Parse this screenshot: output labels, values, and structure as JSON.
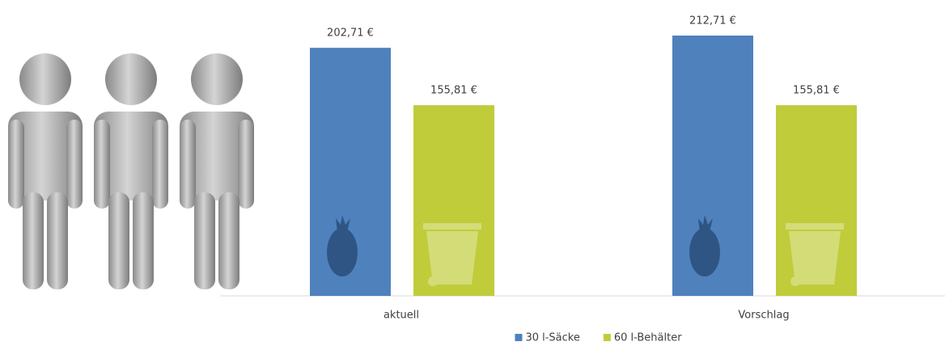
{
  "chart_data": {
    "type": "bar",
    "categories": [
      "aktuell",
      "Vorschlag"
    ],
    "series": [
      {
        "name": "30 l-Säcke",
        "color": "#4f81bd",
        "values": [
          202.71,
          212.71
        ],
        "value_labels": [
          "202,71 €",
          "212,71 €"
        ]
      },
      {
        "name": "60 l-Behälter",
        "color": "#c0cc3a",
        "values": [
          155.81,
          155.81
        ],
        "value_labels": [
          "155,81 €",
          "155,81 €"
        ]
      }
    ],
    "legend": "bottom"
  }
}
